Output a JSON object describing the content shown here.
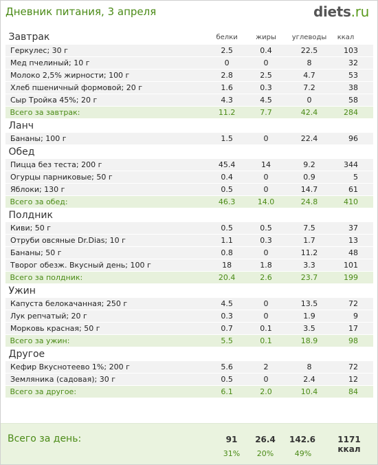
{
  "header": {
    "title": "Дневник питания, 3 апреля",
    "logo_main": "diets",
    "logo_tld": ".ru"
  },
  "columns": {
    "protein": "белки",
    "fat": "жиры",
    "carbs": "углеводы",
    "kcal": "ккал"
  },
  "meals": [
    {
      "name": "Завтрак",
      "items": [
        {
          "name": "Геркулес; 30 г",
          "protein": "2.5",
          "fat": "0.4",
          "carbs": "22.5",
          "kcal": "103"
        },
        {
          "name": "Мед пчелиный; 10 г",
          "protein": "0",
          "fat": "0",
          "carbs": "8",
          "kcal": "32"
        },
        {
          "name": "Молоко 2,5% жирности; 100 г",
          "protein": "2.8",
          "fat": "2.5",
          "carbs": "4.7",
          "kcal": "53"
        },
        {
          "name": "Хлеб пшеничный формовой; 20 г",
          "protein": "1.6",
          "fat": "0.3",
          "carbs": "7.2",
          "kcal": "38"
        },
        {
          "name": "Сыр Тройка 45%; 20 г",
          "protein": "4.3",
          "fat": "4.5",
          "carbs": "0",
          "kcal": "58"
        }
      ],
      "total": {
        "label": "Всего за завтрак:",
        "protein": "11.2",
        "fat": "7.7",
        "carbs": "42.4",
        "kcal": "284"
      }
    },
    {
      "name": "Ланч",
      "items": [
        {
          "name": "Бананы; 100 г",
          "protein": "1.5",
          "fat": "0",
          "carbs": "22.4",
          "kcal": "96"
        }
      ]
    },
    {
      "name": "Обед",
      "items": [
        {
          "name": "Пицца без теста; 200 г",
          "protein": "45.4",
          "fat": "14",
          "carbs": "9.2",
          "kcal": "344"
        },
        {
          "name": "Огурцы парниковые; 50 г",
          "protein": "0.4",
          "fat": "0",
          "carbs": "0.9",
          "kcal": "5"
        },
        {
          "name": "Яблоки; 130 г",
          "protein": "0.5",
          "fat": "0",
          "carbs": "14.7",
          "kcal": "61"
        }
      ],
      "total": {
        "label": "Всего за обед:",
        "protein": "46.3",
        "fat": "14.0",
        "carbs": "24.8",
        "kcal": "410"
      }
    },
    {
      "name": "Полдник",
      "items": [
        {
          "name": "Киви; 50 г",
          "protein": "0.5",
          "fat": "0.5",
          "carbs": "7.5",
          "kcal": "37"
        },
        {
          "name": "Отруби овсяные Dr.Dias; 10 г",
          "protein": "1.1",
          "fat": "0.3",
          "carbs": "1.7",
          "kcal": "13"
        },
        {
          "name": "Бананы; 50 г",
          "protein": "0.8",
          "fat": "0",
          "carbs": "11.2",
          "kcal": "48"
        },
        {
          "name": "Творог обезж. Вкусный день; 100 г",
          "protein": "18",
          "fat": "1.8",
          "carbs": "3.3",
          "kcal": "101"
        }
      ],
      "total": {
        "label": "Всего за полдник:",
        "protein": "20.4",
        "fat": "2.6",
        "carbs": "23.7",
        "kcal": "199"
      }
    },
    {
      "name": "Ужин",
      "items": [
        {
          "name": "Капуста белокачанная; 250 г",
          "protein": "4.5",
          "fat": "0",
          "carbs": "13.5",
          "kcal": "72"
        },
        {
          "name": "Лук репчатый; 20 г",
          "protein": "0.3",
          "fat": "0",
          "carbs": "1.9",
          "kcal": "9"
        },
        {
          "name": "Морковь красная; 50 г",
          "protein": "0.7",
          "fat": "0.1",
          "carbs": "3.5",
          "kcal": "17"
        }
      ],
      "total": {
        "label": "Всего за ужин:",
        "protein": "5.5",
        "fat": "0.1",
        "carbs": "18.9",
        "kcal": "98"
      }
    },
    {
      "name": "Другое",
      "items": [
        {
          "name": "Кефир Вкуснотеево 1%; 200 г",
          "protein": "5.6",
          "fat": "2",
          "carbs": "8",
          "kcal": "72"
        },
        {
          "name": "Земляника (садовая); 30 г",
          "protein": "0.5",
          "fat": "0",
          "carbs": "2.4",
          "kcal": "12"
        }
      ],
      "total": {
        "label": "Всего за другое:",
        "protein": "6.1",
        "fat": "2.0",
        "carbs": "10.4",
        "kcal": "84"
      }
    }
  ],
  "day_total": {
    "label": "Всего за день:",
    "protein": "91",
    "fat": "26.4",
    "carbs": "142.6",
    "kcal": "1171 ккал",
    "protein_pct": "31%",
    "fat_pct": "20%",
    "carbs_pct": "49%"
  }
}
